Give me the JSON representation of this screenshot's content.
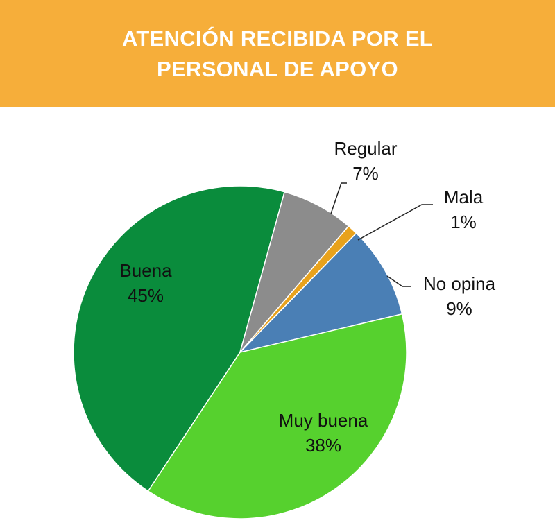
{
  "header": {
    "title_line1": "ATENCIÓN RECIBIDA POR EL",
    "title_line2": "PERSONAL DE APOYO",
    "background_color": "#F6AE3A",
    "text_color": "#FFFFFF"
  },
  "chart_data": {
    "type": "pie",
    "title": "ATENCIÓN RECIBIDA POR EL PERSONAL DE APOYO",
    "slices": [
      {
        "label": "Buena",
        "percent_label": "45%",
        "value": 45,
        "color": "#0A8C3C"
      },
      {
        "label": "Regular",
        "percent_label": "7%",
        "value": 7,
        "color": "#8C8C8C"
      },
      {
        "label": "Mala",
        "percent_label": "1%",
        "value": 1,
        "color": "#E8A21C"
      },
      {
        "label": "No opina",
        "percent_label": "9%",
        "value": 9,
        "color": "#4A7FB5"
      },
      {
        "label": "Muy buena",
        "percent_label": "38%",
        "value": 38,
        "color": "#56D12E"
      }
    ]
  }
}
